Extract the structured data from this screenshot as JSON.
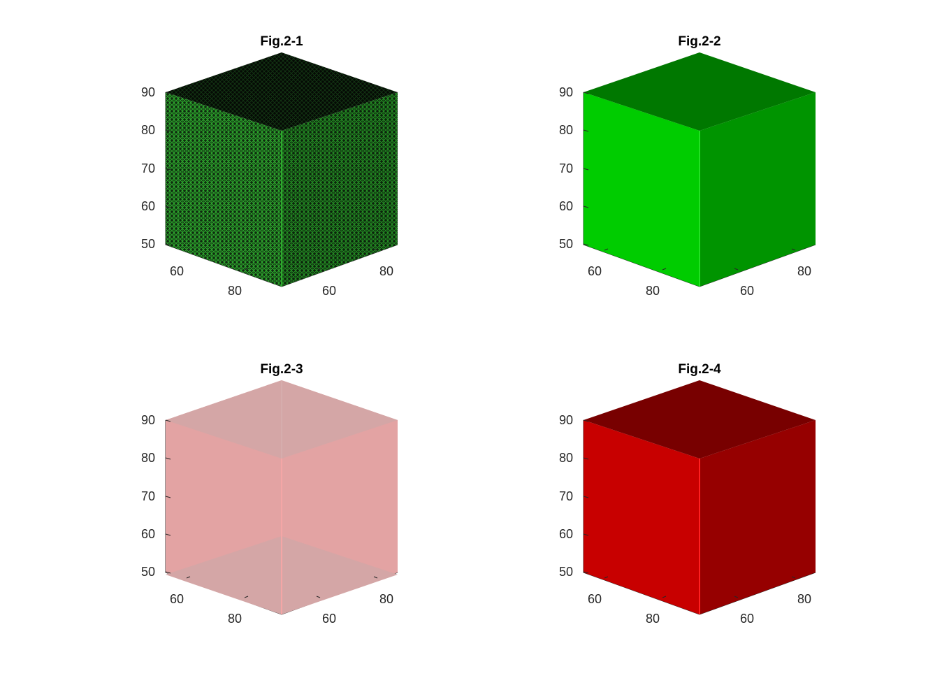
{
  "chart_data": [
    {
      "type": "surface3d",
      "title": "Fig.2-1",
      "z_ticks": [
        "90",
        "80",
        "70",
        "60",
        "50"
      ],
      "x_ticks": [
        "60",
        "80"
      ],
      "y_ticks": [
        "60",
        "80"
      ],
      "style": "mesh",
      "colors": {
        "top": "#0d1a0d",
        "left": "#1b4d1b",
        "right": "#143a14",
        "edge": "#2fa82f"
      },
      "opacity": 1
    },
    {
      "type": "surface3d",
      "title": "Fig.2-2",
      "z_ticks": [
        "90",
        "80",
        "70",
        "60",
        "50"
      ],
      "x_ticks": [
        "60",
        "80"
      ],
      "y_ticks": [
        "60",
        "80"
      ],
      "style": "solid",
      "colors": {
        "top": "#007800",
        "left": "#00cc00",
        "right": "#009400",
        "edge": "#22e022"
      },
      "opacity": 1
    },
    {
      "type": "surface3d",
      "title": "Fig.2-3",
      "z_ticks": [
        "90",
        "80",
        "70",
        "60",
        "50"
      ],
      "x_ticks": [
        "60",
        "80"
      ],
      "y_ticks": [
        "60",
        "80"
      ],
      "style": "transparent",
      "colors": {
        "top": "#d4a5a5",
        "left": "#e3a3a3",
        "right": "#e3a3a3",
        "edge": "#f4a6a6"
      },
      "opacity": 1
    },
    {
      "type": "surface3d",
      "title": "Fig.2-4",
      "z_ticks": [
        "90",
        "80",
        "70",
        "60",
        "50"
      ],
      "x_ticks": [
        "60",
        "80"
      ],
      "y_ticks": [
        "60",
        "80"
      ],
      "style": "solid",
      "colors": {
        "top": "#780000",
        "left": "#c80000",
        "right": "#960000",
        "edge": "#ff2020"
      },
      "opacity": 1
    }
  ]
}
